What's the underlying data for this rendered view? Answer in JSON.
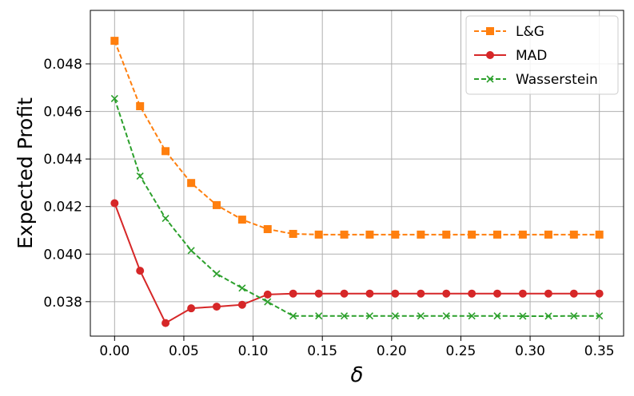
{
  "chart_data": {
    "type": "line",
    "xlabel": "δ",
    "ylabel": "Expected Profit",
    "xlim": [
      -0.0175,
      0.3675
    ],
    "ylim": [
      0.03655,
      0.05025
    ],
    "x_ticks": [
      0.0,
      0.05,
      0.1,
      0.15,
      0.2,
      0.25,
      0.3,
      0.35
    ],
    "x_tick_labels": [
      "0.00",
      "0.05",
      "0.10",
      "0.15",
      "0.20",
      "0.25",
      "0.30",
      "0.35"
    ],
    "y_ticks": [
      0.038,
      0.04,
      0.042,
      0.044,
      0.046,
      0.048
    ],
    "y_tick_labels": [
      "0.038",
      "0.040",
      "0.042",
      "0.044",
      "0.046",
      "0.048"
    ],
    "grid": true,
    "legend_position": "top-right",
    "x": [
      0.0,
      0.0184,
      0.0368,
      0.0553,
      0.0737,
      0.0921,
      0.1105,
      0.1289,
      0.1474,
      0.1658,
      0.1842,
      0.2026,
      0.2211,
      0.2395,
      0.2579,
      0.2763,
      0.2947,
      0.3132,
      0.3316,
      0.35
    ],
    "series": [
      {
        "name": "L&G",
        "color": "#ff7f0e",
        "line_style": "dashed",
        "marker": "square",
        "values": [
          0.04897,
          0.04622,
          0.04433,
          0.04299,
          0.04206,
          0.04145,
          0.04105,
          0.04085,
          0.04082,
          0.04082,
          0.04082,
          0.04082,
          0.04082,
          0.04082,
          0.04082,
          0.04082,
          0.04082,
          0.04082,
          0.04082,
          0.04082
        ]
      },
      {
        "name": "MAD",
        "color": "#d62728",
        "line_style": "solid",
        "marker": "circle",
        "values": [
          0.04214,
          0.0393,
          0.0371,
          0.03772,
          0.03779,
          0.03787,
          0.0383,
          0.03834,
          0.03834,
          0.03834,
          0.03834,
          0.03834,
          0.03834,
          0.03834,
          0.03834,
          0.03834,
          0.03834,
          0.03834,
          0.03834,
          0.03834
        ]
      },
      {
        "name": "Wasserstein",
        "color": "#2ca02c",
        "line_style": "dashed",
        "marker": "x",
        "values": [
          0.04654,
          0.04328,
          0.0415,
          0.04015,
          0.03917,
          0.03857,
          0.03799,
          0.0374,
          0.0374,
          0.0374,
          0.0374,
          0.0374,
          0.0374,
          0.0374,
          0.0374,
          0.0374,
          0.03739,
          0.03739,
          0.0374,
          0.0374
        ]
      }
    ]
  }
}
